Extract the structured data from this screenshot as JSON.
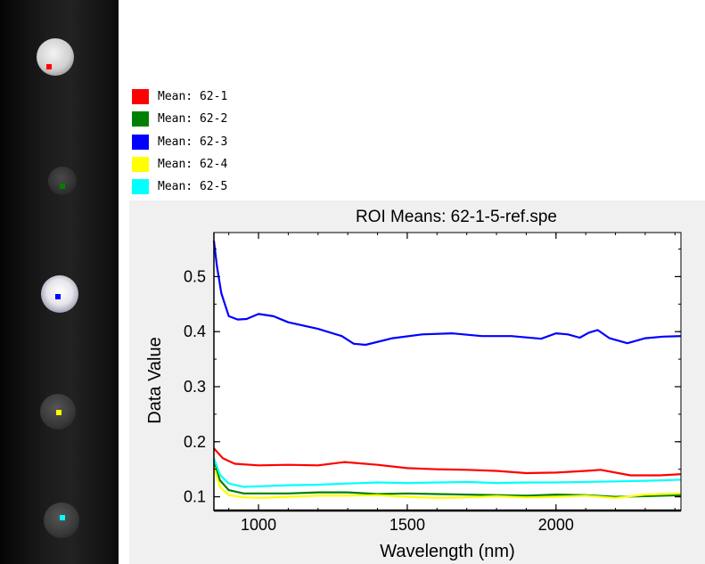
{
  "legend": [
    {
      "label": "Mean: 62-1",
      "color": "#ff0000"
    },
    {
      "label": "Mean: 62-2",
      "color": "#008000"
    },
    {
      "label": "Mean: 62-3",
      "color": "#0000ff"
    },
    {
      "label": "Mean: 62-4",
      "color": "#ffff00"
    },
    {
      "label": "Mean: 62-5",
      "color": "#00ffff"
    }
  ],
  "samples": [
    {
      "roi_color": "#ff0000"
    },
    {
      "roi_color": "#008000"
    },
    {
      "roi_color": "#0000ff"
    },
    {
      "roi_color": "#ffff00"
    },
    {
      "roi_color": "#00ffff"
    }
  ],
  "chart_data": {
    "type": "line",
    "title": "ROI Means: 62-1-5-ref.spe",
    "xlabel": "Wavelength (nm)",
    "ylabel": "Data Value",
    "xlim": [
      850,
      2420
    ],
    "ylim": [
      0.075,
      0.58
    ],
    "xticks": [
      1000,
      1500,
      2000
    ],
    "yticks": [
      0.1,
      0.2,
      0.3,
      0.4,
      0.5
    ],
    "series": [
      {
        "name": "Mean: 62-1",
        "color": "#ff0000",
        "x": [
          850,
          880,
          920,
          1000,
          1100,
          1200,
          1290,
          1400,
          1500,
          1600,
          1700,
          1800,
          1900,
          2000,
          2100,
          2150,
          2250,
          2350,
          2420
        ],
        "y": [
          0.188,
          0.17,
          0.16,
          0.157,
          0.158,
          0.157,
          0.163,
          0.158,
          0.152,
          0.15,
          0.149,
          0.147,
          0.143,
          0.144,
          0.147,
          0.149,
          0.139,
          0.139,
          0.141
        ]
      },
      {
        "name": "Mean: 62-2",
        "color": "#008000",
        "x": [
          850,
          870,
          900,
          950,
          1000,
          1100,
          1200,
          1300,
          1400,
          1500,
          1600,
          1700,
          1800,
          1900,
          2000,
          2100,
          2200,
          2300,
          2420
        ],
        "y": [
          0.165,
          0.13,
          0.112,
          0.106,
          0.106,
          0.106,
          0.108,
          0.108,
          0.105,
          0.106,
          0.105,
          0.104,
          0.103,
          0.102,
          0.104,
          0.103,
          0.1,
          0.101,
          0.103
        ]
      },
      {
        "name": "Mean: 62-3",
        "color": "#0000ff",
        "x": [
          850,
          860,
          875,
          900,
          930,
          960,
          1000,
          1050,
          1100,
          1200,
          1280,
          1320,
          1360,
          1450,
          1550,
          1650,
          1750,
          1850,
          1950,
          2000,
          2040,
          2080,
          2110,
          2140,
          2180,
          2240,
          2300,
          2360,
          2420
        ],
        "y": [
          0.565,
          0.52,
          0.47,
          0.428,
          0.422,
          0.423,
          0.432,
          0.428,
          0.417,
          0.405,
          0.392,
          0.378,
          0.376,
          0.388,
          0.395,
          0.397,
          0.392,
          0.392,
          0.387,
          0.397,
          0.395,
          0.389,
          0.398,
          0.403,
          0.388,
          0.379,
          0.388,
          0.391,
          0.392
        ]
      },
      {
        "name": "Mean: 62-4",
        "color": "#ffff00",
        "x": [
          850,
          870,
          900,
          950,
          1000,
          1100,
          1200,
          1300,
          1400,
          1500,
          1600,
          1700,
          1800,
          1900,
          2000,
          2100,
          2200,
          2300,
          2420
        ],
        "y": [
          0.155,
          0.118,
          0.103,
          0.099,
          0.098,
          0.1,
          0.102,
          0.102,
          0.103,
          0.1,
          0.098,
          0.099,
          0.101,
          0.099,
          0.1,
          0.102,
          0.098,
          0.104,
          0.106
        ]
      },
      {
        "name": "Mean: 62-5",
        "color": "#00ffff",
        "x": [
          850,
          870,
          900,
          950,
          1000,
          1100,
          1200,
          1300,
          1400,
          1500,
          1600,
          1700,
          1800,
          1900,
          2000,
          2100,
          2200,
          2300,
          2420
        ],
        "y": [
          0.17,
          0.14,
          0.124,
          0.118,
          0.119,
          0.121,
          0.122,
          0.124,
          0.126,
          0.125,
          0.126,
          0.127,
          0.125,
          0.126,
          0.126,
          0.127,
          0.128,
          0.129,
          0.131
        ]
      }
    ]
  }
}
